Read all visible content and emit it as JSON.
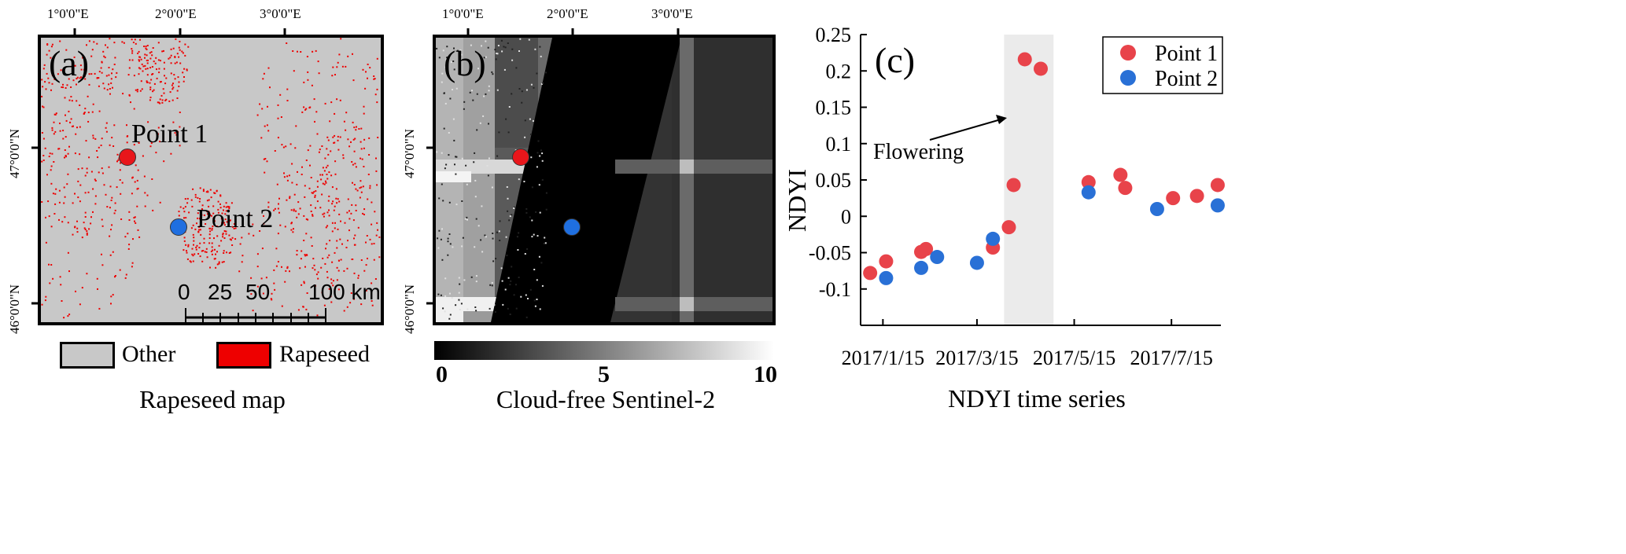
{
  "panel_a": {
    "letter": "(a)",
    "top_ticks": [
      "1°0'0\"E",
      "2°0'0\"E",
      "3°0'0\"E"
    ],
    "left_ticks": [
      "47°0'0\"N",
      "46°0'0\"N"
    ],
    "points": [
      {
        "label": "Point 1",
        "color": "#e8161b"
      },
      {
        "label": "Point 2",
        "color": "#1f6fe0"
      }
    ],
    "scale_labels": [
      "0",
      "25",
      "50",
      "100 km"
    ],
    "legend": [
      {
        "label": "Other",
        "color": "#c8c8c8"
      },
      {
        "label": "Rapeseed",
        "color": "#ee0000"
      }
    ],
    "caption": "Rapeseed map"
  },
  "panel_b": {
    "letter": "(b)",
    "top_ticks": [
      "1°0'0\"E",
      "2°0'0\"E",
      "3°0'0\"E"
    ],
    "left_ticks": [
      "47°0'0\"N",
      "46°0'0\"N"
    ],
    "colorbar_labels": [
      "0",
      "5",
      "10"
    ],
    "caption": "Cloud-free Sentinel-2"
  },
  "chart_data": {
    "type": "scatter",
    "panel_letter": "(c)",
    "ylabel": "NDYI",
    "xlabel": "NDYI time series",
    "ylim": [
      -0.15,
      0.25
    ],
    "y_ticks": [
      "-0.1",
      "-0.05",
      "0",
      "0.05",
      "0.1",
      "0.15",
      "0.2",
      "0.25"
    ],
    "x_ticks": [
      "2017/1/15",
      "2017/3/15",
      "2017/5/15",
      "2017/7/15"
    ],
    "xlim": [
      "2017-01-01",
      "2017-08-15"
    ],
    "shaded_period": [
      "2017-04-01",
      "2017-05-02"
    ],
    "annotation": "Flowering",
    "legend_position": "top-right",
    "series": [
      {
        "name": "Point 1",
        "color": "#e8434a",
        "points": [
          {
            "x": "2017-01-07",
            "y": -0.078
          },
          {
            "x": "2017-01-17",
            "y": -0.062
          },
          {
            "x": "2017-02-08",
            "y": -0.049
          },
          {
            "x": "2017-02-11",
            "y": -0.045
          },
          {
            "x": "2017-03-25",
            "y": -0.043
          },
          {
            "x": "2017-04-04",
            "y": -0.015
          },
          {
            "x": "2017-04-07",
            "y": 0.043
          },
          {
            "x": "2017-04-14",
            "y": 0.216
          },
          {
            "x": "2017-04-24",
            "y": 0.203
          },
          {
            "x": "2017-05-24",
            "y": 0.047
          },
          {
            "x": "2017-06-13",
            "y": 0.057
          },
          {
            "x": "2017-06-16",
            "y": 0.039
          },
          {
            "x": "2017-07-16",
            "y": 0.025
          },
          {
            "x": "2017-07-31",
            "y": 0.028
          },
          {
            "x": "2017-08-13",
            "y": 0.043
          }
        ]
      },
      {
        "name": "Point 2",
        "color": "#2970d6",
        "points": [
          {
            "x": "2017-01-17",
            "y": -0.085
          },
          {
            "x": "2017-02-08",
            "y": -0.071
          },
          {
            "x": "2017-02-18",
            "y": -0.056
          },
          {
            "x": "2017-03-15",
            "y": -0.064
          },
          {
            "x": "2017-03-25",
            "y": -0.031
          },
          {
            "x": "2017-05-24",
            "y": 0.033
          },
          {
            "x": "2017-07-06",
            "y": 0.01
          },
          {
            "x": "2017-08-13",
            "y": 0.015
          }
        ]
      }
    ]
  }
}
